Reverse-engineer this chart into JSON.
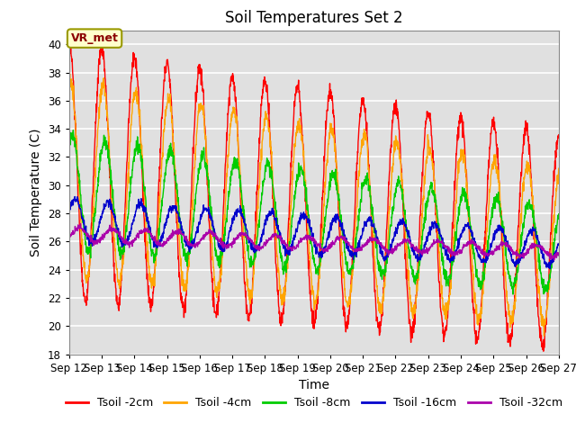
{
  "title": "Soil Temperatures Set 2",
  "xlabel": "Time",
  "ylabel": "Soil Temperature (C)",
  "ylim": [
    18,
    41
  ],
  "yticks": [
    18,
    20,
    22,
    24,
    26,
    28,
    30,
    32,
    34,
    36,
    38,
    40
  ],
  "annotation_text": "VR_met",
  "bg_color": "#e0e0e0",
  "lines": [
    {
      "label": "Tsoil -2cm",
      "color": "#ff0000"
    },
    {
      "label": "Tsoil -4cm",
      "color": "#ffa500"
    },
    {
      "label": "Tsoil -8cm",
      "color": "#00cc00"
    },
    {
      "label": "Tsoil -16cm",
      "color": "#0000cc"
    },
    {
      "label": "Tsoil -32cm",
      "color": "#aa00aa"
    }
  ],
  "date_start": 12,
  "date_end": 27,
  "n_days": 15,
  "n_pts": 1800,
  "figsize": [
    6.4,
    4.8
  ],
  "dpi": 100
}
